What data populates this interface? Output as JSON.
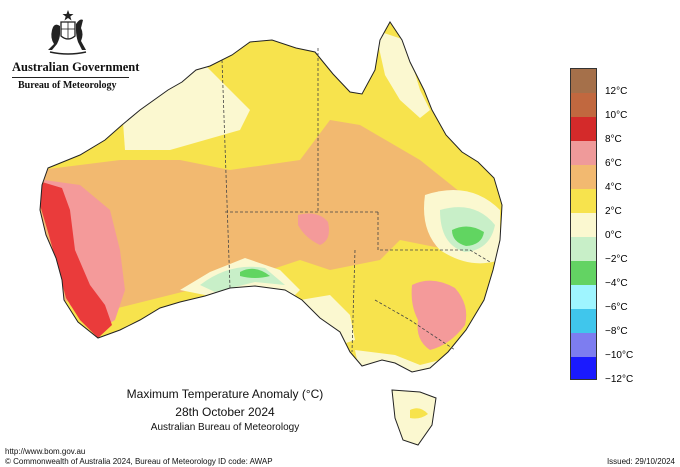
{
  "header": {
    "government": "Australian Government",
    "agency": "Bureau of Meteorology"
  },
  "map": {
    "title_line1": "Maximum Temperature Anomaly (°C)",
    "title_line2": "28th October 2024",
    "title_line3": "Australian Bureau of Meteorology",
    "variable": "Maximum Temperature Anomaly",
    "units": "°C",
    "date": "28th October 2024",
    "regions_shown": [
      "mainland Australia",
      "Tasmania"
    ],
    "anomaly_pattern": [
      {
        "region": "south-west Western Australia coast",
        "category": "8°C to 10°C",
        "color": "#ea3b3b"
      },
      {
        "region": "inland south-west Western Australia",
        "category": "6°C to 8°C",
        "color": "#f49a9a"
      },
      {
        "region": "western and central interior",
        "category": "4°C to 6°C",
        "color": "#f2b970"
      },
      {
        "region": "northern Australia and Queensland",
        "category": "2°C to 4°C",
        "color": "#f7e34d"
      },
      {
        "region": "New South Wales and Victoria",
        "category": "2°C to 4°C",
        "color": "#f7e34d"
      },
      {
        "region": "south-east New South Wales",
        "category": "6°C to 8°C",
        "color": "#f49a9a"
      },
      {
        "region": "far north Queensland, Kimberley",
        "category": "0°C to 2°C",
        "color": "#fbf8d0"
      },
      {
        "region": "south-east Queensland",
        "category": "-2°C to -4°C",
        "color": "#61d561"
      },
      {
        "region": "Great Australian Bight coast",
        "category": "0°C to -2°C",
        "color": "#c8efc8"
      },
      {
        "region": "Tasmania",
        "category": "0°C to 2°C",
        "color": "#fbf8d0"
      }
    ]
  },
  "legend": {
    "colors": [
      "#a5704a",
      "#c1683f",
      "#d42a2a",
      "#ef9a9a",
      "#f2b970",
      "#f7e34d",
      "#fbf8d0",
      "#c8efc8",
      "#63d363",
      "#9ff5ff",
      "#40c6ec",
      "#7d7df0",
      "#1a1aff"
    ],
    "labels": [
      "12°C",
      "10°C",
      "8°C",
      "6°C",
      "4°C",
      "2°C",
      "0°C",
      "−2°C",
      "−4°C",
      "−6°C",
      "−8°C",
      "−10°C",
      "−12°C"
    ]
  },
  "footer": {
    "url": "http://www.bom.gov.au",
    "copyright": "© Commonwealth of Australia 2024, Bureau of Meteorology",
    "id_code": "ID code: AWAP",
    "issued": "Issued: 29/10/2024"
  }
}
